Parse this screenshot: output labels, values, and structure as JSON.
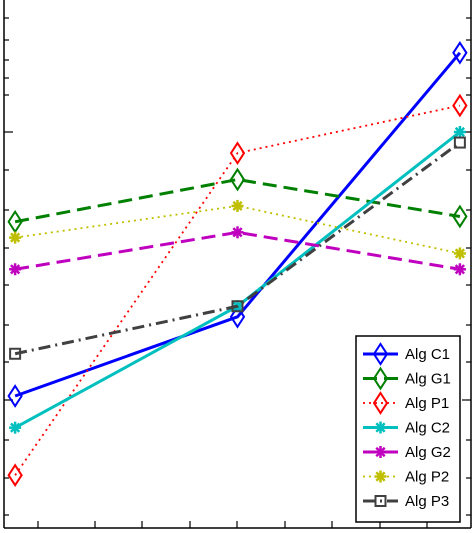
{
  "chart_data": {
    "type": "line",
    "title": "",
    "xlabel": "",
    "ylabel": "",
    "x": [
      1,
      2,
      3
    ],
    "xlim": [
      0.95,
      3.05
    ],
    "ylim": [
      0,
      1
    ],
    "log_scale_y": true,
    "grid": false,
    "legend_placement": "bottom-right",
    "series": [
      {
        "name": "Alg C1",
        "values": [
          0.25,
          0.4,
          0.9
        ],
        "color": "#0000ff",
        "dash": "solid",
        "marker": "diamond"
      },
      {
        "name": "Alg G1",
        "values": [
          0.58,
          0.66,
          0.59
        ],
        "color": "#008000",
        "dash": "dashed",
        "marker": "diamond"
      },
      {
        "name": "Alg P1",
        "values": [
          0.1,
          0.71,
          0.8
        ],
        "color": "#ff0000",
        "dash": "dotted",
        "marker": "diamond"
      },
      {
        "name": "Alg C2",
        "values": [
          0.19,
          0.42,
          0.75
        ],
        "color": "#00bfbf",
        "dash": "solid",
        "marker": "asterisk"
      },
      {
        "name": "Alg G2",
        "values": [
          0.49,
          0.56,
          0.49
        ],
        "color": "#bf00bf",
        "dash": "dashed",
        "marker": "asterisk"
      },
      {
        "name": "Alg P2",
        "values": [
          0.55,
          0.61,
          0.52
        ],
        "color": "#bfbf00",
        "dash": "dotted",
        "marker": "asterisk"
      },
      {
        "name": "Alg P3",
        "values": [
          0.33,
          0.42,
          0.73
        ],
        "color": "#404040",
        "dash": "dashdot",
        "marker": "square"
      }
    ]
  }
}
